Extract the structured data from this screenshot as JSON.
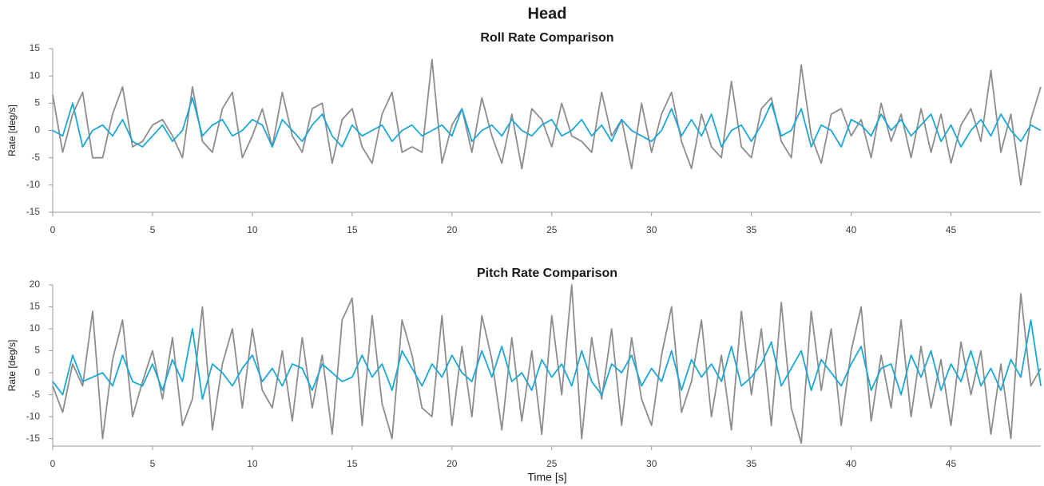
{
  "title": "Head",
  "chart_data": [
    {
      "type": "line",
      "title": "Roll Rate Comparison",
      "ylabel": "Rate [deg/s]",
      "x": [
        0,
        0.5,
        1,
        1.5,
        2,
        2.5,
        3,
        3.5,
        4,
        4.5,
        5,
        5.5,
        6,
        6.5,
        7,
        7.5,
        8,
        8.5,
        9,
        9.5,
        10,
        10.5,
        11,
        11.5,
        12,
        12.5,
        13,
        13.5,
        14,
        14.5,
        15,
        15.5,
        16,
        16.5,
        17,
        17.5,
        18,
        18.5,
        19,
        19.5,
        20,
        20.5,
        21,
        21.5,
        22,
        22.5,
        23,
        23.5,
        24,
        24.5,
        25,
        25.5,
        26,
        26.5,
        27,
        27.5,
        28,
        28.5,
        29,
        29.5,
        30,
        30.5,
        31,
        31.5,
        32,
        32.5,
        33,
        33.5,
        34,
        34.5,
        35,
        35.5,
        36,
        36.5,
        37,
        37.5,
        38,
        38.5,
        39,
        39.5,
        40,
        40.5,
        41,
        41.5,
        42,
        42.5,
        43,
        43.5,
        44,
        44.5,
        45,
        45.5,
        46,
        46.5,
        47,
        47.5,
        48,
        48.5,
        49,
        49.5
      ],
      "series": [
        {
          "color": "#8c8c8c",
          "values": [
            6.5,
            -4,
            3,
            7,
            -5,
            -5,
            3,
            8,
            -3,
            -2,
            1,
            2,
            -1,
            -5,
            8,
            -2,
            -4,
            4,
            7,
            -5,
            -1,
            4,
            -3,
            7,
            -1,
            -4,
            4,
            5,
            -6,
            2,
            4,
            -3,
            -6,
            3,
            7,
            -4,
            -3,
            -4,
            13,
            -6,
            1,
            4,
            -4,
            6,
            -1,
            -6,
            3,
            -7,
            4,
            2,
            -3,
            5,
            -1,
            -2,
            -4,
            7,
            -1,
            2,
            -7,
            5,
            -4,
            3,
            7,
            -2,
            -7,
            3,
            -3,
            -5,
            9,
            -3,
            -5,
            4,
            6,
            -2,
            -5,
            12,
            -1,
            -6,
            3,
            4,
            -1,
            2,
            -5,
            5,
            -2,
            3,
            -5,
            4,
            -4,
            3,
            -6,
            1,
            4,
            -2,
            11,
            -4,
            3,
            -10,
            2,
            8
          ]
        },
        {
          "color": "#1aa7d8",
          "values": [
            0,
            -1,
            5,
            -3,
            0,
            1,
            -1,
            2,
            -2,
            -3,
            -1,
            1,
            -2,
            0,
            6,
            -1,
            1,
            2,
            -1,
            0,
            2,
            1,
            -3,
            2,
            0,
            -2,
            1,
            3,
            -1,
            -3,
            1,
            -1,
            0,
            1,
            -2,
            0,
            1,
            -1,
            0,
            1,
            -1,
            4,
            -2,
            0,
            1,
            -1,
            2,
            0,
            -1,
            1,
            2,
            -1,
            0,
            2,
            -1,
            1,
            -2,
            2,
            0,
            -1,
            -2,
            0,
            4,
            -1,
            2,
            -1,
            3,
            -3,
            0,
            1,
            -2,
            1,
            5,
            -1,
            0,
            4,
            -3,
            1,
            0,
            -3,
            2,
            1,
            -1,
            3,
            0,
            2,
            -1,
            1,
            3,
            -2,
            1,
            -3,
            0,
            2,
            -1,
            3,
            0,
            -2,
            1,
            0
          ]
        }
      ],
      "xlim": [
        0,
        49.5
      ],
      "xticks": [
        0,
        5,
        10,
        15,
        20,
        25,
        30,
        35,
        40,
        45
      ],
      "ylim": [
        -15,
        15
      ],
      "yticks": [
        -15,
        -10,
        -5,
        0,
        5,
        10,
        15
      ]
    },
    {
      "type": "line",
      "title": "Pitch Rate Comparison",
      "ylabel": "Rate [deg/s]",
      "xlabel": "Time [s]",
      "x": [
        0,
        0.5,
        1,
        1.5,
        2,
        2.5,
        3,
        3.5,
        4,
        4.5,
        5,
        5.5,
        6,
        6.5,
        7,
        7.5,
        8,
        8.5,
        9,
        9.5,
        10,
        10.5,
        11,
        11.5,
        12,
        12.5,
        13,
        13.5,
        14,
        14.5,
        15,
        15.5,
        16,
        16.5,
        17,
        17.5,
        18,
        18.5,
        19,
        19.5,
        20,
        20.5,
        21,
        21.5,
        22,
        22.5,
        23,
        23.5,
        24,
        24.5,
        25,
        25.5,
        26,
        26.5,
        27,
        27.5,
        28,
        28.5,
        29,
        29.5,
        30,
        30.5,
        31,
        31.5,
        32,
        32.5,
        33,
        33.5,
        34,
        34.5,
        35,
        35.5,
        36,
        36.5,
        37,
        37.5,
        38,
        38.5,
        39,
        39.5,
        40,
        40.5,
        41,
        41.5,
        42,
        42.5,
        43,
        43.5,
        44,
        44.5,
        45,
        45.5,
        46,
        46.5,
        47,
        47.5,
        48,
        48.5,
        49,
        49.5
      ],
      "series": [
        {
          "color": "#8c8c8c",
          "values": [
            -3,
            -9,
            2,
            -3,
            14,
            -15,
            3,
            12,
            -10,
            -2,
            5,
            -6,
            8,
            -12,
            -6,
            15,
            -13,
            2,
            10,
            -8,
            10,
            -4,
            -8,
            5,
            -11,
            8,
            -8,
            4,
            -14,
            12,
            17,
            -12,
            13,
            -7,
            -15,
            12,
            4,
            -8,
            -10,
            13,
            -12,
            6,
            -10,
            13,
            3,
            -13,
            8,
            -11,
            5,
            -14,
            13,
            -5,
            20,
            -15,
            8,
            -6,
            10,
            -12,
            8,
            -6,
            -12,
            4,
            15,
            -9,
            -2,
            12,
            -10,
            4,
            -13,
            14,
            -5,
            10,
            -12,
            16,
            -8,
            -16,
            14,
            -4,
            10,
            -12,
            5,
            15,
            -11,
            4,
            -8,
            12,
            -10,
            6,
            -8,
            3,
            -12,
            7,
            -5,
            5,
            -14,
            2,
            -15,
            18,
            -3,
            1
          ]
        },
        {
          "color": "#1aa7d8",
          "values": [
            -2,
            -5,
            4,
            -2,
            -1,
            0,
            -3,
            4,
            -2,
            -3,
            2,
            -4,
            3,
            -2,
            10,
            -6,
            2,
            0,
            -3,
            1,
            4,
            -2,
            1,
            -3,
            2,
            1,
            -4,
            2,
            0,
            -2,
            -1,
            4,
            -1,
            2,
            -4,
            5,
            1,
            -3,
            2,
            -1,
            4,
            0,
            -2,
            5,
            -1,
            6,
            -2,
            0,
            -4,
            3,
            -1,
            2,
            -3,
            5,
            -2,
            -5,
            2,
            0,
            4,
            -3,
            1,
            -2,
            5,
            -4,
            3,
            -1,
            2,
            -2,
            6,
            -3,
            -1,
            2,
            7,
            -3,
            1,
            5,
            -4,
            3,
            0,
            -3,
            2,
            6,
            -4,
            1,
            2,
            -5,
            4,
            -1,
            5,
            -4,
            2,
            -2,
            5,
            -3,
            1,
            -4,
            3,
            -1,
            12,
            -3
          ]
        }
      ],
      "xlim": [
        0,
        49.5
      ],
      "xticks": [
        0,
        5,
        10,
        15,
        20,
        25,
        30,
        35,
        40,
        45
      ],
      "ylim": [
        -16.7,
        20
      ],
      "yticks": [
        -15,
        -10,
        -5,
        0,
        5,
        10,
        15,
        20
      ]
    }
  ]
}
